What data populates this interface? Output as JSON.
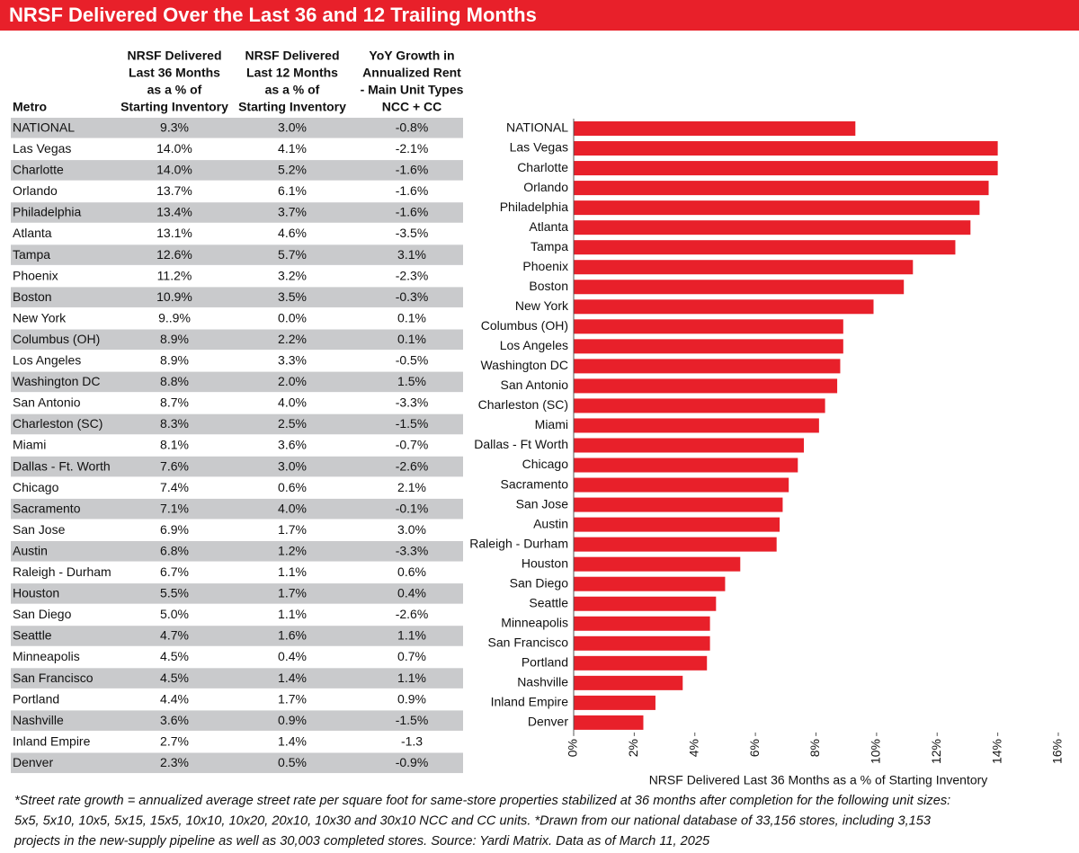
{
  "title": "NRSF Delivered Over the Last 36 and 12 Trailing Months",
  "table": {
    "headers": [
      [
        "Metro"
      ],
      [
        "NRSF Delivered",
        "Last 36 Months",
        "as a % of",
        "Starting Inventory"
      ],
      [
        "NRSF Delivered",
        "Last 12 Months",
        "as a % of",
        "Starting Inventory"
      ],
      [
        "YoY Growth in",
        "Annualized Rent",
        "- Main Unit Types",
        "NCC + CC"
      ]
    ],
    "rows": [
      [
        "NATIONAL",
        "9.3%",
        "3.0%",
        "-0.8%"
      ],
      [
        "Las Vegas",
        "14.0%",
        "4.1%",
        "-2.1%"
      ],
      [
        "Charlotte",
        "14.0%",
        "5.2%",
        "-1.6%"
      ],
      [
        "Orlando",
        "13.7%",
        "6.1%",
        "-1.6%"
      ],
      [
        "Philadelphia",
        "13.4%",
        "3.7%",
        "-1.6%"
      ],
      [
        "Atlanta",
        "13.1%",
        "4.6%",
        "-3.5%"
      ],
      [
        "Tampa",
        "12.6%",
        "5.7%",
        "3.1%"
      ],
      [
        "Phoenix",
        "11.2%",
        "3.2%",
        "-2.3%"
      ],
      [
        "Boston",
        "10.9%",
        "3.5%",
        "-0.3%"
      ],
      [
        "New York",
        "9..9%",
        "0.0%",
        "0.1%"
      ],
      [
        "Columbus (OH)",
        "8.9%",
        "2.2%",
        "0.1%"
      ],
      [
        "Los Angeles",
        "8.9%",
        "3.3%",
        "-0.5%"
      ],
      [
        "Washington DC",
        "8.8%",
        "2.0%",
        "1.5%"
      ],
      [
        "San Antonio",
        "8.7%",
        "4.0%",
        "-3.3%"
      ],
      [
        "Charleston (SC)",
        "8.3%",
        "2.5%",
        "-1.5%"
      ],
      [
        "Miami",
        "8.1%",
        "3.6%",
        "-0.7%"
      ],
      [
        "Dallas - Ft. Worth",
        "7.6%",
        "3.0%",
        "-2.6%"
      ],
      [
        "Chicago",
        "7.4%",
        "0.6%",
        "2.1%"
      ],
      [
        "Sacramento",
        "7.1%",
        "4.0%",
        "-0.1%"
      ],
      [
        "San Jose",
        "6.9%",
        "1.7%",
        "3.0%"
      ],
      [
        "Austin",
        "6.8%",
        "1.2%",
        "-3.3%"
      ],
      [
        "Raleigh - Durham",
        "6.7%",
        "1.1%",
        "0.6%"
      ],
      [
        "Houston",
        "5.5%",
        "1.7%",
        "0.4%"
      ],
      [
        "San Diego",
        "5.0%",
        "1.1%",
        "-2.6%"
      ],
      [
        "Seattle",
        "4.7%",
        "1.6%",
        "1.1%"
      ],
      [
        "Minneapolis",
        "4.5%",
        "0.4%",
        "0.7%"
      ],
      [
        "San Francisco",
        "4.5%",
        "1.4%",
        "1.1%"
      ],
      [
        "Portland",
        "4.4%",
        "1.7%",
        "0.9%"
      ],
      [
        "Nashville",
        "3.6%",
        "0.9%",
        "-1.5%"
      ],
      [
        "Inland Empire",
        "2.7%",
        "1.4%",
        "-1.3"
      ],
      [
        "Denver",
        "2.3%",
        "0.5%",
        "-0.9%"
      ]
    ]
  },
  "chart_data": {
    "type": "bar",
    "orientation": "horizontal",
    "x_label": "NRSF Delivered Last 36 Months as a % of Starting Inventory",
    "categories": [
      "NATIONAL",
      "Las Vegas",
      "Charlotte",
      "Orlando",
      "Philadelphia",
      "Atlanta",
      "Tampa",
      "Phoenix",
      "Boston",
      "New York",
      "Columbus (OH)",
      "Los Angeles",
      "Washington DC",
      "San Antonio",
      "Charleston (SC)",
      "Miami",
      "Dallas - Ft Worth",
      "Chicago",
      "Sacramento",
      "San Jose",
      "Austin",
      "Raleigh - Durham",
      "Houston",
      "San Diego",
      "Seattle",
      "Minneapolis",
      "San Francisco",
      "Portland",
      "Nashville",
      "Inland Empire",
      "Denver"
    ],
    "values": [
      9.3,
      14.0,
      14.0,
      13.7,
      13.4,
      13.1,
      12.6,
      11.2,
      10.9,
      9.9,
      8.9,
      8.9,
      8.8,
      8.7,
      8.3,
      8.1,
      7.6,
      7.4,
      7.1,
      6.9,
      6.8,
      6.7,
      5.5,
      5.0,
      4.7,
      4.5,
      4.5,
      4.4,
      3.6,
      2.7,
      2.3
    ],
    "color": "#e8202a",
    "xlim": [
      0,
      16
    ],
    "xticks": [
      {
        "value": 0,
        "label": "0%"
      },
      {
        "value": 2,
        "label": "2%"
      },
      {
        "value": 4,
        "label": "4%"
      },
      {
        "value": 6,
        "label": "6%"
      },
      {
        "value": 8,
        "label": "8%"
      },
      {
        "value": 10,
        "label": "10%"
      },
      {
        "value": 12,
        "label": "12%"
      },
      {
        "value": 14,
        "label": "14%"
      },
      {
        "value": 16,
        "label": "16%"
      }
    ],
    "grid": false
  },
  "footnote": [
    "*Street rate growth = annualized average street rate per square foot for same-store properties stabilized at 36 months after completion for the following unit sizes:",
    "5x5, 5x10, 10x5, 5x15, 15x5, 10x10, 10x20, 20x10, 10x30 and 30x10 NCC and CC units. *Drawn from our national database of 33,156 stores, including 3,153",
    "projects in the new-supply pipeline as well as 30,003 completed stores. Source: Yardi Matrix. Data as of March 11, 2025"
  ]
}
